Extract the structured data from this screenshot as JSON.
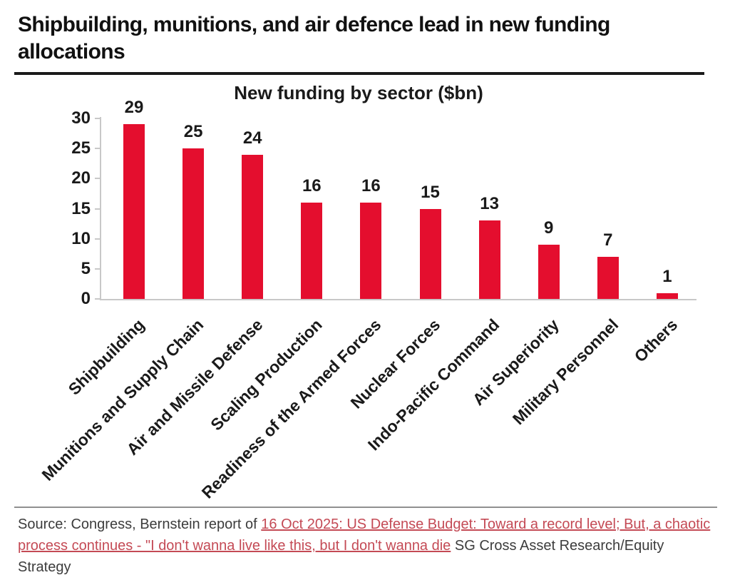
{
  "header": {
    "title": "Shipbuilding, munitions, and air defence lead in new funding allocations"
  },
  "chart_data": {
    "type": "bar",
    "title": "New funding by sector ($bn)",
    "categories": [
      "Shipbuilding",
      "Munitions and Supply Chain",
      "Air and Missile Defense",
      "Scaling Production",
      "Readiness of the Armed Forces",
      "Nuclear Forces",
      "Indo-Pacific Command",
      "Air Superiority",
      "Military Personnel",
      "Others"
    ],
    "values": [
      29,
      25,
      24,
      16,
      16,
      15,
      13,
      9,
      7,
      1
    ],
    "xlabel": "",
    "ylabel": "",
    "ylim": [
      0,
      30
    ],
    "yticks": [
      0,
      5,
      10,
      15,
      20,
      25,
      30
    ],
    "grid": false,
    "legend": false,
    "value_labels": true,
    "bar_color": "#e40e2e",
    "axis_color": "#c8c8c8"
  },
  "footer": {
    "source_prefix": "Source: Congress, Bernstein report of ",
    "source_link": "16 Oct 2025: US Defense Budget: Toward a record level; But, a chaotic process continues - \"I don't wanna live like this, but I don't wanna die",
    "source_suffix": " SG Cross Asset Research/Equity Strategy",
    "link_color": "#c44a55"
  }
}
